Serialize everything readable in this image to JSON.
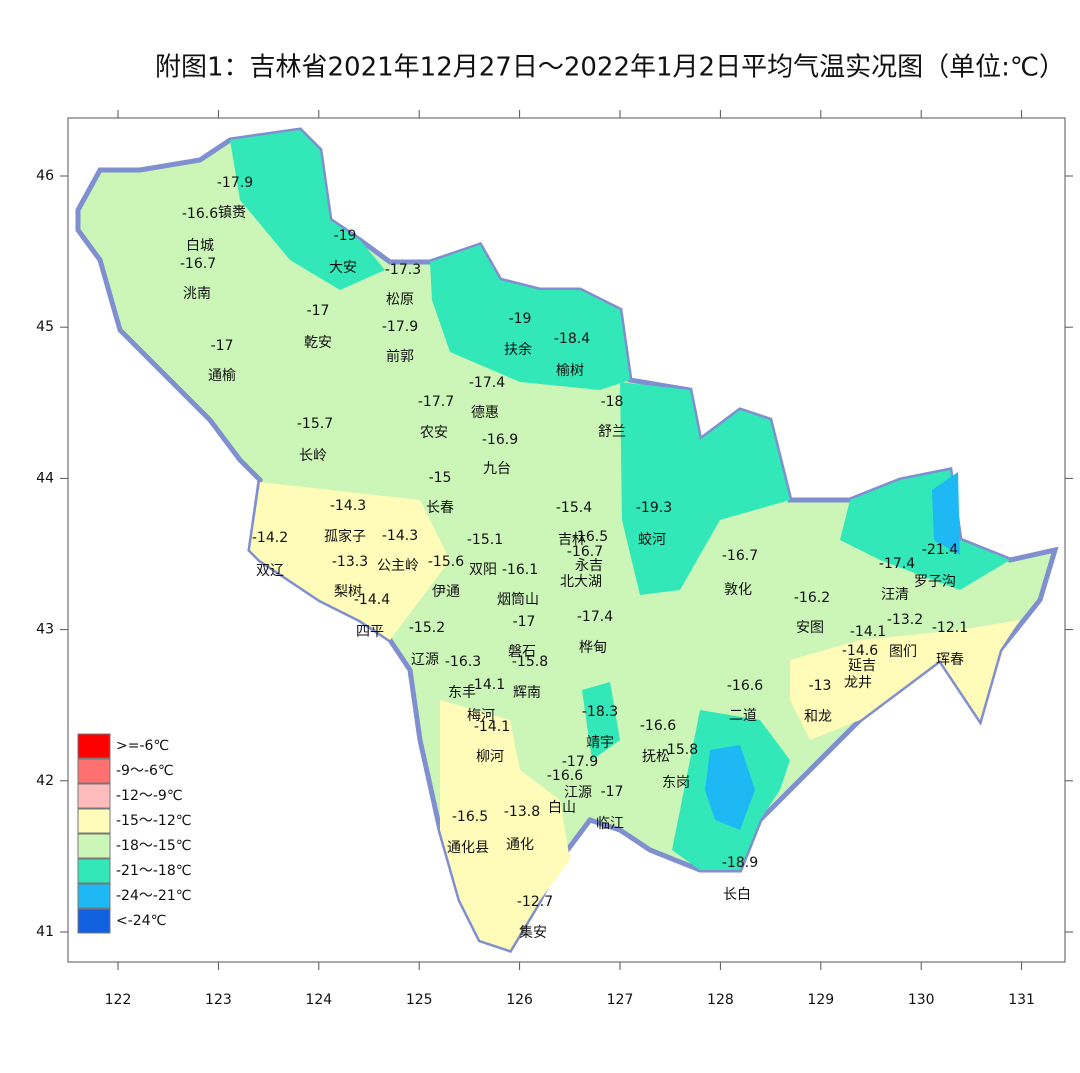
{
  "title": "附图1：吉林省2021年12月27日～2022年1月2日平均气温实况图（单位:℃）",
  "map": {
    "xticks": [
      122,
      123,
      124,
      125,
      126,
      127,
      128,
      129,
      130,
      131
    ],
    "yticks": [
      41,
      42,
      43,
      44,
      45,
      46
    ],
    "stations": [
      {
        "name": "镇赉",
        "value": -17.9
      },
      {
        "name": "白城",
        "value": -16.6
      },
      {
        "name": "洮南",
        "value": -16.7
      },
      {
        "name": "大安",
        "value": -19
      },
      {
        "name": "松原",
        "value": -17.3
      },
      {
        "name": "乾安",
        "value": -17
      },
      {
        "name": "前郭",
        "value": -17.9
      },
      {
        "name": "通榆",
        "value": -17
      },
      {
        "name": "扶余",
        "value": -19
      },
      {
        "name": "榆树",
        "value": -18.4
      },
      {
        "name": "德惠",
        "value": -17.4
      },
      {
        "name": "农安",
        "value": -17.7
      },
      {
        "name": "舒兰",
        "value": -18
      },
      {
        "name": "九台",
        "value": -16.9
      },
      {
        "name": "长岭",
        "value": -15.7
      },
      {
        "name": "长春",
        "value": -15
      },
      {
        "name": "孤家子",
        "value": -14.3
      },
      {
        "name": "公主岭",
        "value": -14.3
      },
      {
        "name": "双辽",
        "value": -14.2
      },
      {
        "name": "梨树",
        "value": -13.3
      },
      {
        "name": "四平",
        "value": -14.4
      },
      {
        "name": "伊通",
        "value": -15.6
      },
      {
        "name": "双阳",
        "value": -15.1
      },
      {
        "name": "吉林",
        "value": -15.4
      },
      {
        "name": "永吉",
        "value": -16.5
      },
      {
        "name": "北大湖",
        "value": -16.7
      },
      {
        "name": "蛟河",
        "value": -19.3
      },
      {
        "name": "烟筒山",
        "value": -16.1
      },
      {
        "name": "桦甸",
        "value": -17.4
      },
      {
        "name": "磐石",
        "value": -17
      },
      {
        "name": "辉南",
        "value": -15.8
      },
      {
        "name": "辽源",
        "value": -15.2
      },
      {
        "name": "东丰",
        "value": -16.3
      },
      {
        "name": "梅河",
        "value": -14.1
      },
      {
        "name": "柳河",
        "value": -14.1
      },
      {
        "name": "靖宇",
        "value": -18.3
      },
      {
        "name": "抚松",
        "value": -16.6
      },
      {
        "name": "东岗",
        "value": -15.8
      },
      {
        "name": "江源",
        "value": -17.9
      },
      {
        "name": "白山",
        "value": -16.6
      },
      {
        "name": "临江",
        "value": -17
      },
      {
        "name": "通化县",
        "value": -16.5
      },
      {
        "name": "通化",
        "value": -13.8
      },
      {
        "name": "长白",
        "value": -18.9
      },
      {
        "name": "集安",
        "value": -12.7
      },
      {
        "name": "敦化",
        "value": -16.7
      },
      {
        "name": "安图",
        "value": -16.2
      },
      {
        "name": "二道",
        "value": -16.6
      },
      {
        "name": "和龙",
        "value": -13
      },
      {
        "name": "延吉",
        "value": -14.6
      },
      {
        "name": "汪清",
        "value": -17.4
      },
      {
        "name": "罗子沟",
        "value": -21.4
      },
      {
        "name": "图们",
        "value": -13.2
      },
      {
        "name": "龙井",
        "value": -14.1
      },
      {
        "name": "珲春",
        "value": -12.1
      }
    ],
    "legend": [
      {
        "label": ">=-6℃",
        "color": "#ff0000"
      },
      {
        "label": "-9～-6℃",
        "color": "#ff7070"
      },
      {
        "label": "-12～-9℃",
        "color": "#ffbcbc"
      },
      {
        "label": "-15～-12℃",
        "color": "#fffbb8"
      },
      {
        "label": "-18～-15℃",
        "color": "#ccf5b8"
      },
      {
        "label": "-21～-18℃",
        "color": "#33e8b8"
      },
      {
        "label": "-24～-21℃",
        "color": "#1eb8f5"
      },
      {
        "label": "<-24℃",
        "color": "#1060e0"
      }
    ]
  }
}
